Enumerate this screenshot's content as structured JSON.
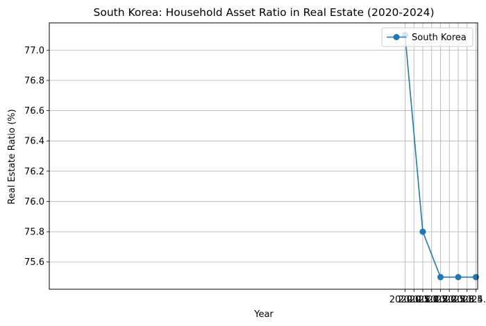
{
  "chart_data": {
    "type": "line",
    "title": "South Korea: Household Asset Ratio in Real Estate (2020-2024)",
    "xlabel": "Year",
    "ylabel": "Real Estate Ratio (%)",
    "xlim": [
      1999.9,
      2024.1
    ],
    "ylim": [
      75.42,
      77.18
    ],
    "xticks": [
      2020.0,
      2020.5,
      2021.0,
      2021.5,
      2022.0,
      2022.5,
      2023.0,
      2023.5,
      2024.0
    ],
    "xtick_labels": [
      "2020.0",
      "2020.5",
      "2021.0",
      "2021.5",
      "2022.0",
      "2022.5",
      "2023.0",
      "2023.5",
      "2024.0"
    ],
    "yticks": [
      75.6,
      75.8,
      76.0,
      76.2,
      76.4,
      76.6,
      76.8,
      77.0
    ],
    "ytick_labels": [
      "75.6",
      "75.8",
      "76.0",
      "76.2",
      "76.4",
      "76.6",
      "76.8",
      "77.0"
    ],
    "grid": true,
    "legend_position": "top-right",
    "series": [
      {
        "name": "South Korea",
        "color": "#1f77b4",
        "marker": "circle",
        "x": [
          2020,
          2021,
          2022,
          2023,
          2024
        ],
        "y": [
          77.1,
          75.8,
          75.5,
          75.5,
          75.5
        ]
      }
    ]
  }
}
